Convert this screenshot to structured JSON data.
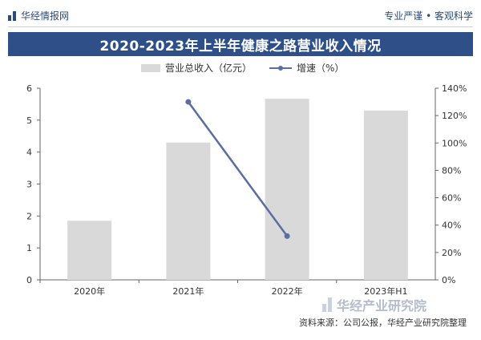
{
  "header": {
    "brand": "华经情报网",
    "tagline": "专业严谨 • 客观科学"
  },
  "chart_data": {
    "type": "bar",
    "title": "2020-2023年上半年健康之路营业收入情况",
    "categories": [
      "2020年",
      "2021年",
      "2022年",
      "2023年H1"
    ],
    "series": [
      {
        "name": "营业总收入（亿元）",
        "type": "bar",
        "axis": "left",
        "values": [
          1.85,
          4.3,
          5.67,
          5.3
        ]
      },
      {
        "name": "增速（%）",
        "type": "line",
        "axis": "right",
        "values": [
          null,
          130,
          32,
          null
        ]
      }
    ],
    "y_left": {
      "min": 0,
      "max": 6,
      "ticks": [
        "0",
        "1",
        "2",
        "3",
        "4",
        "5",
        "6"
      ]
    },
    "y_right": {
      "min": 0,
      "max": 140,
      "ticks": [
        "0%",
        "20%",
        "40%",
        "60%",
        "80%",
        "100%",
        "120%",
        "140%"
      ]
    },
    "colors": {
      "bar": "#d9d9d9",
      "line": "#5a6f9e",
      "title_bg": "#2e4f88"
    },
    "grid": false,
    "legend_position": "top"
  },
  "footer": {
    "source": "资料来源：公司公报，华经产业研究院整理",
    "watermark": "华经产业研究院"
  }
}
